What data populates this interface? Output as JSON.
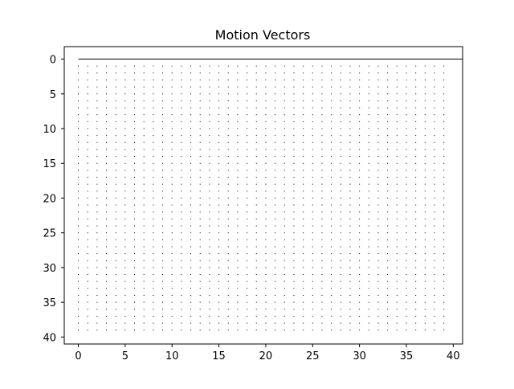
{
  "chart_data": {
    "type": "scatter",
    "title": "Motion Vectors",
    "xlabel": "",
    "ylabel": "",
    "xlim": [
      -1.5,
      41
    ],
    "ylim": [
      41,
      -1.8
    ],
    "y_inverted": true,
    "grid": false,
    "legend": "none",
    "x_ticks": [
      0,
      5,
      10,
      15,
      20,
      25,
      30,
      35,
      40
    ],
    "y_ticks": [
      0,
      5,
      10,
      15,
      20,
      25,
      30,
      35,
      40
    ],
    "x_tick_labels": [
      "0",
      "5",
      "10",
      "15",
      "20",
      "25",
      "30",
      "35",
      "40"
    ],
    "y_tick_labels": [
      "0",
      "5",
      "10",
      "15",
      "20",
      "25",
      "30",
      "35",
      "40"
    ],
    "series": [
      {
        "type": "line",
        "x": [
          0,
          41
        ],
        "y": [
          0,
          0
        ],
        "color": "#000000"
      },
      {
        "type": "grid-points",
        "x_range": [
          0,
          39
        ],
        "y_range": [
          1,
          39
        ],
        "step": 1,
        "marker": "dot",
        "color": "#000000"
      }
    ]
  }
}
